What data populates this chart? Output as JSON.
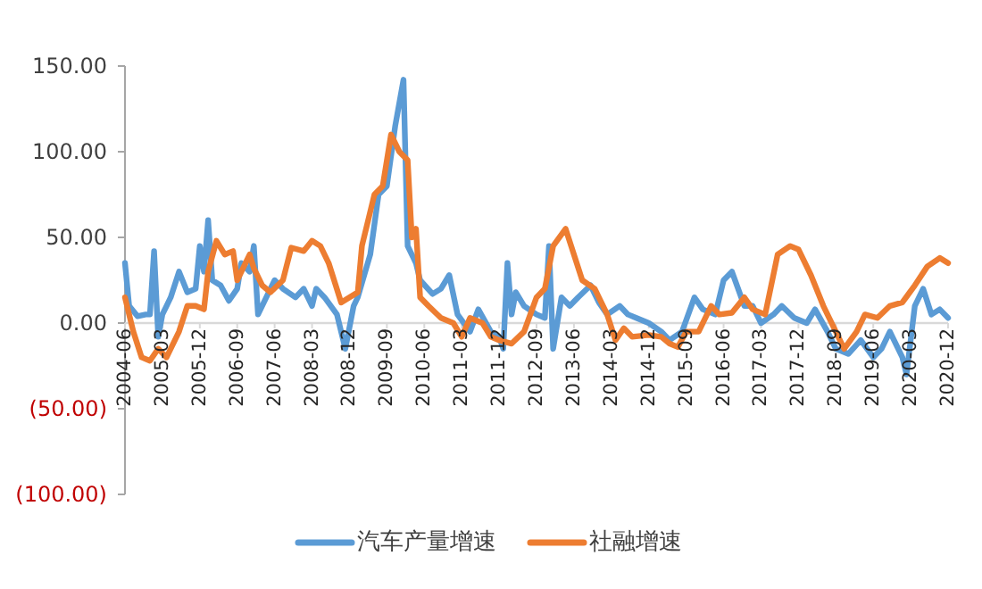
{
  "chart_data": {
    "type": "line",
    "xlim": [
      "2004-06",
      "2020-12"
    ],
    "xticks": [
      "2004-06",
      "2005-03",
      "2005-12",
      "2006-09",
      "2007-06",
      "2008-03",
      "2008-12",
      "2009-09",
      "2010-06",
      "2011-03",
      "2011-12",
      "2012-09",
      "2013-06",
      "2014-03",
      "2014-12",
      "2015-09",
      "2016-06",
      "2017-03",
      "2017-12",
      "2018-09",
      "2019-06",
      "2020-03",
      "2020-12"
    ],
    "ylim": [
      -100,
      150
    ],
    "yticks": [
      {
        "value": 150,
        "label": "150.00"
      },
      {
        "value": 100,
        "label": "100.00"
      },
      {
        "value": 50,
        "label": "50.00"
      },
      {
        "value": 0,
        "label": "0.00"
      },
      {
        "value": -50,
        "label": "(50.00)"
      },
      {
        "value": -100,
        "label": "(100.00)"
      }
    ],
    "grid": false,
    "legend": "bottom",
    "marker": "none",
    "series": [
      {
        "name": "汽车产量增速",
        "color": "#5b9bd5",
        "x": [
          "2004-06",
          "2004-07",
          "2004-09",
          "2004-11",
          "2004-12",
          "2005-01",
          "2005-02",
          "2005-03",
          "2005-04",
          "2005-05",
          "2005-07",
          "2005-09",
          "2005-11",
          "2005-12",
          "2006-01",
          "2006-02",
          "2006-03",
          "2006-05",
          "2006-07",
          "2006-09",
          "2006-10",
          "2006-12",
          "2007-01",
          "2007-02",
          "2007-04",
          "2007-06",
          "2007-08",
          "2007-11",
          "2008-01",
          "2008-03",
          "2008-04",
          "2008-06",
          "2008-09",
          "2008-11",
          "2009-01",
          "2009-02",
          "2009-05",
          "2009-07",
          "2009-09",
          "2009-11",
          "2010-01",
          "2010-02",
          "2010-04",
          "2010-05",
          "2010-08",
          "2010-10",
          "2010-12",
          "2011-02",
          "2011-05",
          "2011-07",
          "2011-10",
          "2011-12",
          "2012-01",
          "2012-02",
          "2012-03",
          "2012-04",
          "2012-06",
          "2012-09",
          "2012-11",
          "2012-12",
          "2013-01",
          "2013-03",
          "2013-05",
          "2013-07",
          "2013-10",
          "2013-12",
          "2014-02",
          "2014-05",
          "2014-07",
          "2014-09",
          "2014-12",
          "2015-03",
          "2015-05",
          "2015-08",
          "2015-11",
          "2016-01",
          "2016-04",
          "2016-06",
          "2016-08",
          "2016-11",
          "2017-01",
          "2017-03",
          "2017-06",
          "2017-08",
          "2017-11",
          "2018-02",
          "2018-04",
          "2018-07",
          "2018-09",
          "2018-12",
          "2019-03",
          "2019-06",
          "2019-08",
          "2019-10",
          "2020-01",
          "2020-02",
          "2020-04",
          "2020-06",
          "2020-08",
          "2020-10",
          "2020-12"
        ],
        "values": [
          35,
          10,
          4,
          5,
          5,
          42,
          -8,
          5,
          10,
          15,
          30,
          18,
          20,
          45,
          30,
          60,
          25,
          22,
          13,
          20,
          35,
          30,
          45,
          5,
          15,
          25,
          20,
          15,
          20,
          10,
          20,
          15,
          5,
          -15,
          10,
          15,
          40,
          75,
          80,
          115,
          142,
          45,
          35,
          25,
          17,
          20,
          28,
          5,
          -5,
          8,
          -5,
          -8,
          -15,
          35,
          5,
          18,
          10,
          5,
          3,
          45,
          -15,
          15,
          10,
          15,
          22,
          12,
          5,
          10,
          5,
          3,
          0,
          -5,
          -10,
          -5,
          15,
          8,
          5,
          25,
          30,
          10,
          10,
          0,
          5,
          10,
          3,
          0,
          8,
          -5,
          -15,
          -18,
          -10,
          -20,
          -15,
          -5,
          -20,
          -30,
          10,
          20,
          5,
          8,
          3
        ]
      },
      {
        "name": "社融增速",
        "color": "#ed7d31",
        "x": [
          "2004-06",
          "2004-08",
          "2004-10",
          "2004-12",
          "2005-02",
          "2005-04",
          "2005-07",
          "2005-09",
          "2005-11",
          "2006-01",
          "2006-02",
          "2006-04",
          "2006-06",
          "2006-08",
          "2006-09",
          "2006-12",
          "2007-01",
          "2007-03",
          "2007-05",
          "2007-08",
          "2007-10",
          "2008-01",
          "2008-03",
          "2008-05",
          "2008-07",
          "2008-10",
          "2008-12",
          "2009-02",
          "2009-03",
          "2009-06",
          "2009-08",
          "2009-10",
          "2009-12",
          "2010-02",
          "2010-03",
          "2010-04",
          "2010-05",
          "2010-07",
          "2010-10",
          "2011-01",
          "2011-03",
          "2011-05",
          "2011-08",
          "2011-10",
          "2011-12",
          "2012-03",
          "2012-06",
          "2012-09",
          "2012-11",
          "2013-01",
          "2013-04",
          "2013-06",
          "2013-08",
          "2013-11",
          "2014-02",
          "2014-04",
          "2014-06",
          "2014-08",
          "2014-12",
          "2015-03",
          "2015-05",
          "2015-07",
          "2015-09",
          "2015-12",
          "2016-03",
          "2016-05",
          "2016-08",
          "2016-11",
          "2017-01",
          "2017-04",
          "2017-07",
          "2017-10",
          "2017-12",
          "2018-03",
          "2018-06",
          "2018-09",
          "2018-11",
          "2019-02",
          "2019-04",
          "2019-07",
          "2019-10",
          "2020-01",
          "2020-04",
          "2020-07",
          "2020-10",
          "2020-12"
        ],
        "values": [
          15,
          -5,
          -20,
          -22,
          -15,
          -20,
          -5,
          10,
          10,
          8,
          30,
          48,
          40,
          42,
          25,
          40,
          32,
          22,
          18,
          25,
          44,
          42,
          48,
          45,
          35,
          12,
          15,
          18,
          45,
          75,
          80,
          110,
          100,
          95,
          50,
          55,
          15,
          10,
          3,
          0,
          -8,
          3,
          0,
          -8,
          -10,
          -12,
          -5,
          15,
          20,
          45,
          55,
          40,
          25,
          20,
          5,
          -10,
          -3,
          -8,
          -7,
          -8,
          -12,
          -14,
          -5,
          -5,
          10,
          5,
          6,
          15,
          8,
          5,
          40,
          45,
          43,
          28,
          10,
          -5,
          -15,
          -5,
          5,
          3,
          10,
          12,
          22,
          33,
          38,
          35
        ]
      }
    ]
  }
}
